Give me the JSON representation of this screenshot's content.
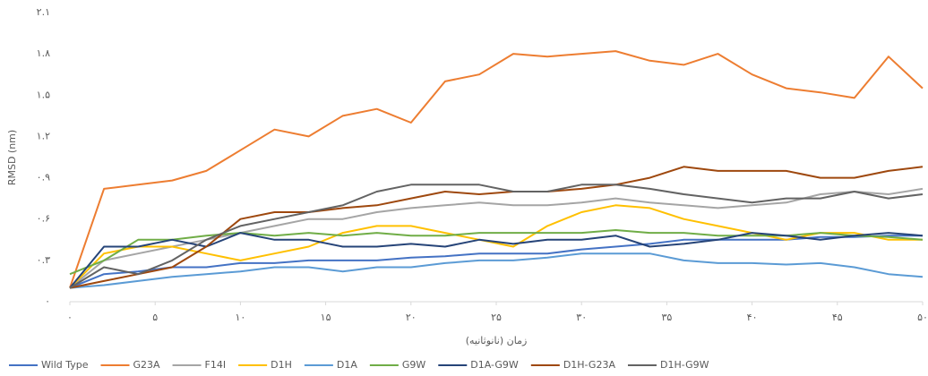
{
  "chart_data": {
    "type": "line",
    "xlabel": "زمان (نانوثانیه)",
    "ylabel": "RMSD (nm)",
    "x": [
      0,
      2,
      4,
      6,
      8,
      10,
      12,
      14,
      16,
      18,
      20,
      22,
      24,
      26,
      28,
      30,
      32,
      34,
      36,
      38,
      40,
      42,
      44,
      46,
      48,
      50
    ],
    "xlim": [
      0,
      50
    ],
    "ylim": [
      0,
      2.1
    ],
    "xticks": [
      {
        "value": 0,
        "label": "۰"
      },
      {
        "value": 5,
        "label": "۵"
      },
      {
        "value": 10,
        "label": "۱۰"
      },
      {
        "value": 15,
        "label": "۱۵"
      },
      {
        "value": 20,
        "label": "۲۰"
      },
      {
        "value": 25,
        "label": "۲۵"
      },
      {
        "value": 30,
        "label": "۳۰"
      },
      {
        "value": 35,
        "label": "۳۵"
      },
      {
        "value": 40,
        "label": "۴۰"
      },
      {
        "value": 45,
        "label": "۴۵"
      },
      {
        "value": 50,
        "label": "۵۰"
      }
    ],
    "yticks": [
      {
        "value": 0,
        "label": "۰"
      },
      {
        "value": 0.3,
        "label": "۰.۳"
      },
      {
        "value": 0.6,
        "label": "۰.۶"
      },
      {
        "value": 0.9,
        "label": "۰.۹"
      },
      {
        "value": 1.2,
        "label": "۱.۲"
      },
      {
        "value": 1.5,
        "label": "۱.۵"
      },
      {
        "value": 1.8,
        "label": "۱.۸"
      },
      {
        "value": 2.1,
        "label": "۲.۱"
      }
    ],
    "legend": "bottom",
    "series": [
      {
        "name": "Wild Type",
        "color": "#4472c4",
        "values": [
          0.1,
          0.2,
          0.22,
          0.25,
          0.25,
          0.28,
          0.28,
          0.3,
          0.3,
          0.3,
          0.32,
          0.33,
          0.35,
          0.35,
          0.35,
          0.38,
          0.4,
          0.42,
          0.45,
          0.45,
          0.45,
          0.45,
          0.47,
          0.47,
          0.48,
          0.48
        ]
      },
      {
        "name": "G23A",
        "color": "#ed7d31",
        "values": [
          0.1,
          0.82,
          0.85,
          0.88,
          0.95,
          1.1,
          1.25,
          1.2,
          1.35,
          1.4,
          1.3,
          1.6,
          1.65,
          1.8,
          1.78,
          1.8,
          1.82,
          1.75,
          1.72,
          1.8,
          1.65,
          1.55,
          1.52,
          1.48,
          1.78,
          1.55
        ]
      },
      {
        "name": "F14I",
        "color": "#a5a5a5",
        "values": [
          0.1,
          0.3,
          0.35,
          0.4,
          0.45,
          0.5,
          0.55,
          0.6,
          0.6,
          0.65,
          0.68,
          0.7,
          0.72,
          0.7,
          0.7,
          0.72,
          0.75,
          0.72,
          0.7,
          0.68,
          0.7,
          0.72,
          0.78,
          0.8,
          0.78,
          0.82
        ]
      },
      {
        "name": "D1H",
        "color": "#ffc000",
        "values": [
          0.1,
          0.35,
          0.4,
          0.4,
          0.35,
          0.3,
          0.35,
          0.4,
          0.5,
          0.55,
          0.55,
          0.5,
          0.45,
          0.4,
          0.55,
          0.65,
          0.7,
          0.68,
          0.6,
          0.55,
          0.5,
          0.45,
          0.5,
          0.5,
          0.45,
          0.45
        ]
      },
      {
        "name": "D1A",
        "color": "#5b9bd5",
        "values": [
          0.1,
          0.12,
          0.15,
          0.18,
          0.2,
          0.22,
          0.25,
          0.25,
          0.22,
          0.25,
          0.25,
          0.28,
          0.3,
          0.3,
          0.32,
          0.35,
          0.35,
          0.35,
          0.3,
          0.28,
          0.28,
          0.27,
          0.28,
          0.25,
          0.2,
          0.18
        ]
      },
      {
        "name": "G9W",
        "color": "#70ad47",
        "values": [
          0.2,
          0.3,
          0.45,
          0.45,
          0.48,
          0.5,
          0.48,
          0.5,
          0.48,
          0.5,
          0.48,
          0.48,
          0.5,
          0.5,
          0.5,
          0.5,
          0.52,
          0.5,
          0.5,
          0.48,
          0.48,
          0.48,
          0.5,
          0.48,
          0.47,
          0.45
        ]
      },
      {
        "name": "D1A-G9W",
        "color": "#264478",
        "values": [
          0.1,
          0.4,
          0.4,
          0.45,
          0.4,
          0.5,
          0.45,
          0.45,
          0.4,
          0.4,
          0.42,
          0.4,
          0.45,
          0.42,
          0.45,
          0.45,
          0.48,
          0.4,
          0.42,
          0.45,
          0.5,
          0.48,
          0.45,
          0.48,
          0.5,
          0.48
        ]
      },
      {
        "name": "D1H-G23A",
        "color": "#9e480e",
        "values": [
          0.1,
          0.15,
          0.2,
          0.25,
          0.4,
          0.6,
          0.65,
          0.65,
          0.68,
          0.7,
          0.75,
          0.8,
          0.78,
          0.8,
          0.8,
          0.82,
          0.85,
          0.9,
          0.98,
          0.95,
          0.95,
          0.95,
          0.9,
          0.9,
          0.95,
          0.98
        ]
      },
      {
        "name": "D1H-G9W",
        "color": "#636363",
        "values": [
          0.1,
          0.25,
          0.2,
          0.3,
          0.45,
          0.55,
          0.6,
          0.65,
          0.7,
          0.8,
          0.85,
          0.85,
          0.85,
          0.8,
          0.8,
          0.85,
          0.85,
          0.82,
          0.78,
          0.75,
          0.72,
          0.75,
          0.75,
          0.8,
          0.75,
          0.78
        ]
      }
    ]
  }
}
